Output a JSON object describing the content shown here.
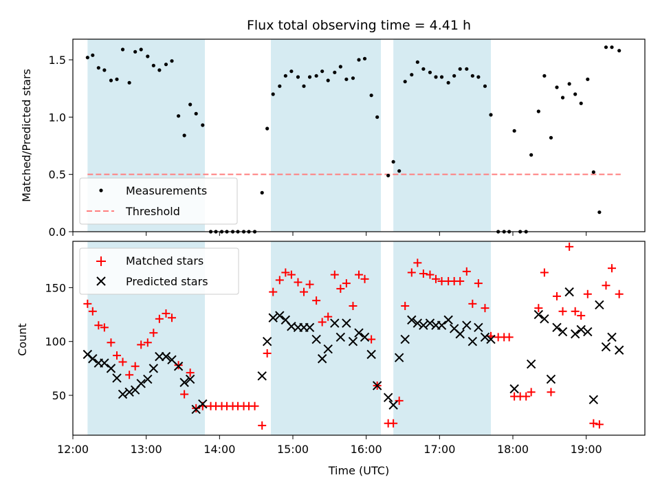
{
  "chart_data": [
    {
      "type": "scatter",
      "title": "Flux total observing time = 4.41 h",
      "ylabel": "Matched/Predicted stars",
      "xlabel": "",
      "xlim": [
        12.0,
        19.8
      ],
      "ylim": [
        0.0,
        1.68
      ],
      "yticks": [
        0.0,
        0.5,
        1.0,
        1.5
      ],
      "ytick_labels": [
        "0.0",
        "0.5",
        "1.0",
        "1.5"
      ],
      "shaded_intervals": [
        [
          12.2,
          13.8
        ],
        [
          14.7,
          16.2
        ],
        [
          16.37,
          17.7
        ]
      ],
      "shade_color": "#add8e6",
      "threshold": {
        "name": "Threshold",
        "y": 0.5,
        "x_start": 12.2,
        "x_end": 19.47,
        "color": "#ff7f7f"
      },
      "legend": {
        "location": "lower-left",
        "entries": [
          "Measurements",
          "Threshold"
        ]
      },
      "series": [
        {
          "name": "Measurements",
          "marker": "dot",
          "color": "#000000",
          "points": [
            [
              12.2,
              1.52
            ],
            [
              12.27,
              1.54
            ],
            [
              12.35,
              1.43
            ],
            [
              12.43,
              1.41
            ],
            [
              12.52,
              1.32
            ],
            [
              12.6,
              1.33
            ],
            [
              12.68,
              1.59
            ],
            [
              12.77,
              1.3
            ],
            [
              12.85,
              1.57
            ],
            [
              12.93,
              1.59
            ],
            [
              13.02,
              1.53
            ],
            [
              13.1,
              1.45
            ],
            [
              13.18,
              1.41
            ],
            [
              13.27,
              1.46
            ],
            [
              13.35,
              1.49
            ],
            [
              13.44,
              1.01
            ],
            [
              13.52,
              0.84
            ],
            [
              13.6,
              1.11
            ],
            [
              13.68,
              1.03
            ],
            [
              13.77,
              0.93
            ],
            [
              13.88,
              0.0
            ],
            [
              13.95,
              0.0
            ],
            [
              14.03,
              0.0
            ],
            [
              14.1,
              0.0
            ],
            [
              14.18,
              0.0
            ],
            [
              14.25,
              0.0
            ],
            [
              14.33,
              0.0
            ],
            [
              14.4,
              0.0
            ],
            [
              14.48,
              0.0
            ],
            [
              14.58,
              0.34
            ],
            [
              14.65,
              0.9
            ],
            [
              14.73,
              1.2
            ],
            [
              14.82,
              1.27
            ],
            [
              14.9,
              1.36
            ],
            [
              14.98,
              1.4
            ],
            [
              15.07,
              1.35
            ],
            [
              15.15,
              1.27
            ],
            [
              15.23,
              1.35
            ],
            [
              15.32,
              1.36
            ],
            [
              15.4,
              1.4
            ],
            [
              15.48,
              1.32
            ],
            [
              15.57,
              1.39
            ],
            [
              15.65,
              1.44
            ],
            [
              15.73,
              1.33
            ],
            [
              15.82,
              1.34
            ],
            [
              15.9,
              1.5
            ],
            [
              15.98,
              1.51
            ],
            [
              16.07,
              1.19
            ],
            [
              16.15,
              1.0
            ],
            [
              16.3,
              0.49
            ],
            [
              16.37,
              0.61
            ],
            [
              16.45,
              0.53
            ],
            [
              16.53,
              1.31
            ],
            [
              16.62,
              1.37
            ],
            [
              16.7,
              1.48
            ],
            [
              16.78,
              1.42
            ],
            [
              16.87,
              1.39
            ],
            [
              16.95,
              1.35
            ],
            [
              17.03,
              1.35
            ],
            [
              17.12,
              1.3
            ],
            [
              17.2,
              1.36
            ],
            [
              17.28,
              1.42
            ],
            [
              17.37,
              1.42
            ],
            [
              17.45,
              1.36
            ],
            [
              17.53,
              1.35
            ],
            [
              17.62,
              1.27
            ],
            [
              17.7,
              1.02
            ],
            [
              17.8,
              0.0
            ],
            [
              17.88,
              0.0
            ],
            [
              17.95,
              0.0
            ],
            [
              18.1,
              0.0
            ],
            [
              18.18,
              0.0
            ],
            [
              18.02,
              0.88
            ],
            [
              18.25,
              0.67
            ],
            [
              18.35,
              1.05
            ],
            [
              18.43,
              1.36
            ],
            [
              18.52,
              0.82
            ],
            [
              18.6,
              1.26
            ],
            [
              18.68,
              1.17
            ],
            [
              18.77,
              1.29
            ],
            [
              18.85,
              1.2
            ],
            [
              18.93,
              1.12
            ],
            [
              19.02,
              1.33
            ],
            [
              19.1,
              0.52
            ],
            [
              19.18,
              0.17
            ],
            [
              19.27,
              1.61
            ],
            [
              19.35,
              1.61
            ],
            [
              19.45,
              1.58
            ]
          ]
        }
      ]
    },
    {
      "type": "scatter",
      "title": "",
      "xlabel": "Time (UTC)",
      "ylabel": "Count",
      "xlim": [
        12.0,
        19.8
      ],
      "ylim": [
        13,
        193
      ],
      "xticks": [
        12,
        13,
        14,
        15,
        16,
        17,
        18,
        19
      ],
      "xtick_labels": [
        "12:00",
        "13:00",
        "14:00",
        "15:00",
        "16:00",
        "17:00",
        "18:00",
        "19:00"
      ],
      "yticks": [
        50,
        100,
        150
      ],
      "ytick_labels": [
        "50",
        "100",
        "150"
      ],
      "shaded_intervals": [
        [
          12.2,
          13.8
        ],
        [
          14.7,
          16.2
        ],
        [
          16.37,
          17.7
        ]
      ],
      "shade_color": "#add8e6",
      "legend": {
        "location": "upper-left",
        "entries": [
          "Matched stars",
          "Predicted stars"
        ]
      },
      "series": [
        {
          "name": "Matched stars",
          "marker": "plus",
          "color": "#ff0000",
          "points": [
            [
              12.2,
              135
            ],
            [
              12.27,
              128
            ],
            [
              12.35,
              115
            ],
            [
              12.43,
              113
            ],
            [
              12.52,
              99
            ],
            [
              12.6,
              87
            ],
            [
              12.68,
              81
            ],
            [
              12.77,
              69
            ],
            [
              12.85,
              77
            ],
            [
              12.93,
              97
            ],
            [
              13.02,
              99
            ],
            [
              13.1,
              108
            ],
            [
              13.18,
              121
            ],
            [
              13.27,
              126
            ],
            [
              13.35,
              122
            ],
            [
              13.44,
              78
            ],
            [
              13.52,
              51
            ],
            [
              13.6,
              71
            ],
            [
              13.68,
              38
            ],
            [
              13.77,
              40
            ],
            [
              13.88,
              40
            ],
            [
              13.95,
              40
            ],
            [
              14.03,
              40
            ],
            [
              14.1,
              40
            ],
            [
              14.18,
              40
            ],
            [
              14.25,
              40
            ],
            [
              14.33,
              40
            ],
            [
              14.4,
              40
            ],
            [
              14.48,
              40
            ],
            [
              14.58,
              22
            ],
            [
              14.65,
              89
            ],
            [
              14.73,
              146
            ],
            [
              14.82,
              157
            ],
            [
              14.9,
              164
            ],
            [
              14.98,
              162
            ],
            [
              15.07,
              155
            ],
            [
              15.15,
              146
            ],
            [
              15.23,
              153
            ],
            [
              15.32,
              138
            ],
            [
              15.4,
              118
            ],
            [
              15.48,
              123
            ],
            [
              15.57,
              162
            ],
            [
              15.65,
              149
            ],
            [
              15.73,
              154
            ],
            [
              15.82,
              133
            ],
            [
              15.9,
              162
            ],
            [
              15.98,
              158
            ],
            [
              16.07,
              102
            ],
            [
              16.15,
              59
            ],
            [
              16.3,
              24
            ],
            [
              16.37,
              24
            ],
            [
              16.45,
              45
            ],
            [
              16.53,
              133
            ],
            [
              16.62,
              164
            ],
            [
              16.7,
              173
            ],
            [
              16.78,
              163
            ],
            [
              16.87,
              162
            ],
            [
              16.95,
              158
            ],
            [
              17.03,
              156
            ],
            [
              17.12,
              156
            ],
            [
              17.2,
              156
            ],
            [
              17.28,
              156
            ],
            [
              17.37,
              165
            ],
            [
              17.45,
              135
            ],
            [
              17.53,
              154
            ],
            [
              17.62,
              131
            ],
            [
              17.7,
              105
            ],
            [
              17.8,
              104
            ],
            [
              17.88,
              104
            ],
            [
              17.95,
              104
            ],
            [
              18.02,
              49
            ],
            [
              18.1,
              49
            ],
            [
              18.18,
              49
            ],
            [
              18.25,
              53
            ],
            [
              18.35,
              131
            ],
            [
              18.43,
              164
            ],
            [
              18.52,
              53
            ],
            [
              18.6,
              142
            ],
            [
              18.68,
              128
            ],
            [
              18.77,
              188
            ],
            [
              18.85,
              128
            ],
            [
              18.93,
              124
            ],
            [
              19.02,
              144
            ],
            [
              19.1,
              24
            ],
            [
              19.18,
              23
            ],
            [
              19.27,
              152
            ],
            [
              19.35,
              168
            ],
            [
              19.45,
              144
            ]
          ]
        },
        {
          "name": "Predicted stars",
          "marker": "x",
          "color": "#000000",
          "points": [
            [
              12.2,
              88
            ],
            [
              12.27,
              84
            ],
            [
              12.35,
              80
            ],
            [
              12.43,
              80
            ],
            [
              12.52,
              75
            ],
            [
              12.6,
              66
            ],
            [
              12.68,
              51
            ],
            [
              12.77,
              53
            ],
            [
              12.85,
              55
            ],
            [
              12.93,
              61
            ],
            [
              13.02,
              65
            ],
            [
              13.1,
              75
            ],
            [
              13.18,
              86
            ],
            [
              13.27,
              86
            ],
            [
              13.35,
              83
            ],
            [
              13.44,
              77
            ],
            [
              13.52,
              62
            ],
            [
              13.6,
              65
            ],
            [
              13.68,
              37
            ],
            [
              13.77,
              42
            ],
            [
              14.58,
              68
            ],
            [
              14.65,
              100
            ],
            [
              14.73,
              122
            ],
            [
              14.82,
              124
            ],
            [
              14.9,
              120
            ],
            [
              14.98,
              114
            ],
            [
              15.07,
              113
            ],
            [
              15.15,
              113
            ],
            [
              15.23,
              113
            ],
            [
              15.32,
              102
            ],
            [
              15.4,
              84
            ],
            [
              15.48,
              93
            ],
            [
              15.57,
              117
            ],
            [
              15.65,
              104
            ],
            [
              15.73,
              117
            ],
            [
              15.82,
              100
            ],
            [
              15.9,
              108
            ],
            [
              15.98,
              104
            ],
            [
              16.07,
              88
            ],
            [
              16.15,
              59
            ],
            [
              16.3,
              48
            ],
            [
              16.37,
              41
            ],
            [
              16.45,
              85
            ],
            [
              16.53,
              102
            ],
            [
              16.62,
              120
            ],
            [
              16.7,
              117
            ],
            [
              16.78,
              115
            ],
            [
              16.87,
              117
            ],
            [
              16.95,
              115
            ],
            [
              17.03,
              115
            ],
            [
              17.12,
              120
            ],
            [
              17.2,
              112
            ],
            [
              17.28,
              107
            ],
            [
              17.37,
              115
            ],
            [
              17.45,
              100
            ],
            [
              17.53,
              113
            ],
            [
              17.62,
              104
            ],
            [
              17.7,
              102
            ],
            [
              18.02,
              56
            ],
            [
              18.25,
              79
            ],
            [
              18.35,
              125
            ],
            [
              18.43,
              121
            ],
            [
              18.52,
              65
            ],
            [
              18.6,
              113
            ],
            [
              18.68,
              109
            ],
            [
              18.77,
              146
            ],
            [
              18.85,
              107
            ],
            [
              18.93,
              111
            ],
            [
              19.02,
              109
            ],
            [
              19.1,
              46
            ],
            [
              19.18,
              134
            ],
            [
              19.27,
              95
            ],
            [
              19.35,
              104
            ],
            [
              19.45,
              92
            ]
          ]
        }
      ]
    }
  ]
}
